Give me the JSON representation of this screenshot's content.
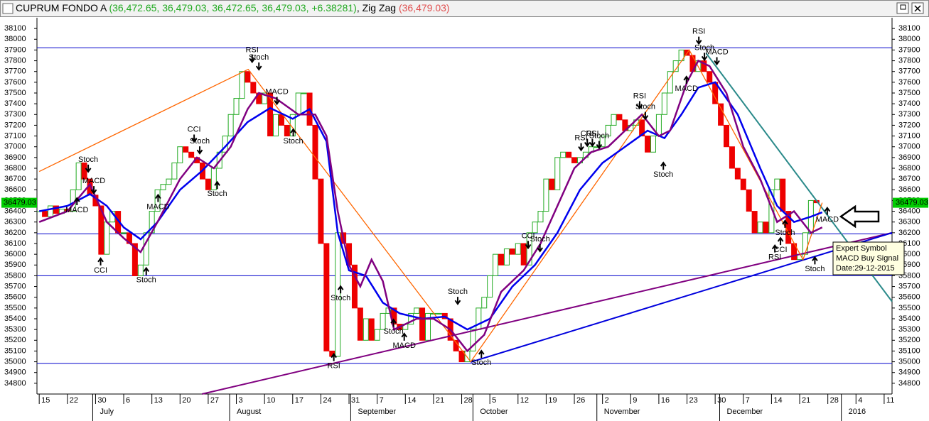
{
  "chart_data": {
    "type": "candlestick",
    "title": "CUPRUM FONDO A",
    "ohlc_text": "(36,472.65, 36,479.03, 36,472.65, 36,479.03, +6.38281)",
    "indicator": ", Zig Zag",
    "indicator_value": "(36,479.03)",
    "up_color": "#22aa22",
    "down_color": "#ee0000",
    "xlim": [
      -0.4,
      151.4
    ],
    "ylim": [
      34700,
      38200
    ],
    "yticks": [
      34800,
      34900,
      35000,
      35100,
      35200,
      35300,
      35400,
      35500,
      35600,
      35700,
      35800,
      35900,
      36000,
      36100,
      36200,
      36300,
      36400,
      36500,
      36600,
      36700,
      36800,
      36900,
      37000,
      37100,
      37200,
      37300,
      37400,
      37500,
      37600,
      37700,
      37800,
      37900,
      38000,
      38100
    ],
    "xticks": [
      {
        "value": 0,
        "label": "15"
      },
      {
        "value": 5,
        "label": "22"
      },
      {
        "value": 10,
        "label": "30"
      },
      {
        "value": 15,
        "label": "6"
      },
      {
        "value": 20,
        "label": "13"
      },
      {
        "value": 25,
        "label": "20"
      },
      {
        "value": 30,
        "label": "27"
      },
      {
        "value": 35,
        "label": "3"
      },
      {
        "value": 40,
        "label": "10"
      },
      {
        "value": 45,
        "label": "17"
      },
      {
        "value": 50,
        "label": "24"
      },
      {
        "value": 55,
        "label": "31"
      },
      {
        "value": 60,
        "label": "7"
      },
      {
        "value": 65,
        "label": "14"
      },
      {
        "value": 70,
        "label": "21"
      },
      {
        "value": 75,
        "label": "28"
      },
      {
        "value": 80,
        "label": "5"
      },
      {
        "value": 85,
        "label": "12"
      },
      {
        "value": 90,
        "label": "19"
      },
      {
        "value": 95,
        "label": "26"
      },
      {
        "value": 100,
        "label": "2"
      },
      {
        "value": 105,
        "label": "9"
      },
      {
        "value": 110,
        "label": "16"
      },
      {
        "value": 115,
        "label": "23"
      },
      {
        "value": 120,
        "label": "30"
      },
      {
        "value": 125,
        "label": "7"
      },
      {
        "value": 130,
        "label": "14"
      },
      {
        "value": 135,
        "label": "21"
      },
      {
        "value": 140,
        "label": "28"
      },
      {
        "value": 145,
        "label": "4"
      },
      {
        "value": 150,
        "label": "11"
      }
    ],
    "months": [
      {
        "value": 9.5,
        "label": "July"
      },
      {
        "value": 33.8,
        "label": "August"
      },
      {
        "value": 55.3,
        "label": "September"
      },
      {
        "value": 77,
        "label": "October"
      },
      {
        "value": 99,
        "label": "November"
      },
      {
        "value": 120.8,
        "label": "December"
      },
      {
        "value": 142.4,
        "label": "2016"
      }
    ],
    "values": [
      36400,
      36350,
      36450,
      36380,
      36420,
      36400,
      36600,
      36850,
      36700,
      36550,
      36450,
      36000,
      36300,
      36400,
      36200,
      36200,
      36100,
      35800,
      35900,
      36200,
      36400,
      36600,
      36650,
      36700,
      36850,
      37000,
      36950,
      36900,
      36850,
      36700,
      36600,
      36800,
      36950,
      37100,
      37300,
      37450,
      37700,
      37600,
      37500,
      37400,
      37500,
      37100,
      37300,
      37200,
      37100,
      37300,
      37500,
      37500,
      37200,
      36700,
      36100,
      35100,
      35050,
      36200,
      36100,
      35900,
      35500,
      35200,
      35400,
      35200,
      35300,
      35450,
      35500,
      35350,
      35300,
      35350,
      35450,
      35500,
      35200,
      35450,
      35450,
      35450,
      35400,
      35200,
      35100,
      35000,
      35100,
      35300,
      35500,
      35600,
      35800,
      36000,
      35900,
      36050,
      36000,
      36100,
      35900,
      36200,
      36300,
      36400,
      36700,
      36600,
      36900,
      36950,
      36900,
      36850,
      36900,
      36950,
      37000,
      37000,
      37100,
      37200,
      37300,
      37250,
      37150,
      37200,
      37250,
      37100,
      36950,
      37100,
      37300,
      37500,
      37700,
      37800,
      37900,
      37850,
      37700,
      37800,
      37700,
      37600,
      37400,
      37200,
      37000,
      36800,
      36700,
      36600,
      36400,
      36200,
      36300,
      36200,
      36600,
      36700,
      36400,
      36100,
      35950,
      36000,
      36200,
      36500,
      36479.03
    ],
    "hlines": {
      "color": "#0000cc",
      "values": [
        37920,
        36190,
        35800,
        34985
      ]
    },
    "moving_averages": [
      {
        "color": "#0000ee",
        "x": [
          0,
          5,
          9,
          12,
          15,
          18,
          21,
          25,
          29,
          33,
          37,
          41,
          45,
          48,
          51,
          53,
          55,
          58,
          61,
          64,
          68,
          72,
          76,
          80,
          84,
          88,
          92,
          96,
          100,
          104,
          108,
          111,
          114,
          117,
          120,
          124,
          128,
          131,
          134,
          137,
          139
        ],
        "values": [
          36400,
          36450,
          36560,
          36450,
          36250,
          36140,
          36300,
          36600,
          36780,
          37000,
          37230,
          37360,
          37260,
          37350,
          37050,
          36200,
          35850,
          35800,
          35550,
          35450,
          35400,
          35420,
          35300,
          35400,
          35700,
          35900,
          36200,
          36600,
          36850,
          37000,
          37150,
          37080,
          37300,
          37550,
          37600,
          37300,
          36800,
          36450,
          36300,
          36350,
          36390
        ]
      },
      {
        "color": "#800080",
        "x": [
          0,
          5,
          9,
          12,
          15,
          18,
          21,
          25,
          28,
          31,
          34,
          37,
          39,
          42,
          46,
          49,
          51,
          53,
          55,
          57,
          59,
          61,
          63,
          67,
          70,
          73,
          76,
          79,
          82,
          86,
          89,
          92,
          95,
          98,
          101,
          104,
          107,
          110,
          112,
          115,
          117,
          119,
          122,
          125,
          128,
          131,
          134,
          137,
          139
        ],
        "values": [
          36300,
          36400,
          36650,
          36300,
          36150,
          36020,
          36300,
          36700,
          36900,
          36800,
          37000,
          37350,
          37500,
          37450,
          37300,
          37300,
          37100,
          36400,
          35900,
          35700,
          35950,
          35750,
          35300,
          35400,
          35400,
          35300,
          35100,
          35250,
          35650,
          35850,
          36100,
          36450,
          36800,
          36950,
          37000,
          37150,
          37300,
          37100,
          37150,
          37600,
          37800,
          37750,
          37500,
          37000,
          36700,
          36300,
          36400,
          36200,
          36250
        ]
      }
    ],
    "zigzag": {
      "color": "#ff6600",
      "x": [
        0,
        37.1,
        76.6,
        115.4,
        135.6,
        139
      ],
      "values": [
        36770,
        37720,
        35000,
        37900,
        35950,
        36479.03
      ]
    },
    "trend_lines": [
      {
        "color": "#800080",
        "x": [
          28.9,
          151.4
        ],
        "values": [
          34700,
          36200
        ]
      },
      {
        "color": "#0000dd",
        "x": [
          76.6,
          151.4
        ],
        "values": [
          34997,
          36200
        ]
      },
      {
        "color": "#2a8a8a",
        "x": [
          118.4,
          151.4
        ],
        "values": [
          37870,
          35560
        ]
      }
    ],
    "signals": [
      {
        "label": "Stoch",
        "x": 8.7,
        "value": 36880,
        "dir": "down"
      },
      {
        "label": "MACD",
        "x": 9.7,
        "value": 36680,
        "dir": "down"
      },
      {
        "label": "MACD",
        "x": 6.7,
        "value": 36410,
        "dir": "up"
      },
      {
        "label": "CCI",
        "x": 10.9,
        "value": 35850,
        "dir": "up"
      },
      {
        "label": "Stoch",
        "x": 19.0,
        "value": 35760,
        "dir": "up"
      },
      {
        "label": "MACD",
        "x": 21.1,
        "value": 36440,
        "dir": "up"
      },
      {
        "label": "CCI",
        "x": 27.5,
        "value": 37160,
        "dir": "down"
      },
      {
        "label": "Stoch",
        "x": 28.5,
        "value": 37050,
        "dir": "down"
      },
      {
        "label": "Stoch",
        "x": 31.6,
        "value": 36560,
        "dir": "up"
      },
      {
        "label": "RSI",
        "x": 37.8,
        "value": 37900,
        "dir": "down"
      },
      {
        "label": "Stoch",
        "x": 39.0,
        "value": 37830,
        "dir": "down"
      },
      {
        "label": "MACD",
        "x": 42.2,
        "value": 37510,
        "dir": "down"
      },
      {
        "label": "Stoch",
        "x": 45.1,
        "value": 37050,
        "dir": "up"
      },
      {
        "label": "Stoch",
        "x": 53.5,
        "value": 35590,
        "dir": "up"
      },
      {
        "label": "RSI",
        "x": 52.3,
        "value": 34960,
        "dir": "up"
      },
      {
        "label": "Stoch",
        "x": 62.9,
        "value": 35280,
        "dir": "up"
      },
      {
        "label": "MACD",
        "x": 64.8,
        "value": 35150,
        "dir": "up"
      },
      {
        "label": "Stoch",
        "x": 74.3,
        "value": 35650,
        "dir": "down"
      },
      {
        "label": "Stoch",
        "x": 78.5,
        "value": 34990,
        "dir": "up"
      },
      {
        "label": "CCI",
        "x": 86.8,
        "value": 36170,
        "dir": "down"
      },
      {
        "label": "Stoch",
        "x": 88.9,
        "value": 36140,
        "dir": "down"
      },
      {
        "label": "RSI",
        "x": 96.2,
        "value": 37080,
        "dir": "down"
      },
      {
        "label": "CCI",
        "x": 97.3,
        "value": 37120,
        "dir": "down"
      },
      {
        "label": "RSI",
        "x": 98.2,
        "value": 37120,
        "dir": "down"
      },
      {
        "label": "Stoch",
        "x": 99.4,
        "value": 37100,
        "dir": "down"
      },
      {
        "label": "RSI",
        "x": 106.6,
        "value": 37470,
        "dir": "down"
      },
      {
        "label": "Stoch",
        "x": 107.6,
        "value": 37370,
        "dir": "down"
      },
      {
        "label": "Stoch",
        "x": 110.8,
        "value": 36740,
        "dir": "up"
      },
      {
        "label": "MACD",
        "x": 114.9,
        "value": 37540,
        "dir": "up"
      },
      {
        "label": "RSI",
        "x": 117.1,
        "value": 38070,
        "dir": "down"
      },
      {
        "label": "Stoch",
        "x": 118.1,
        "value": 37920,
        "dir": "down"
      },
      {
        "label": "MACD",
        "x": 120.3,
        "value": 37880,
        "dir": "down"
      },
      {
        "label": "Stoch",
        "x": 132.4,
        "value": 36200,
        "dir": "up"
      },
      {
        "label": "CCI",
        "x": 131.6,
        "value": 36040,
        "dir": "up"
      },
      {
        "label": "RSI",
        "x": 130.6,
        "value": 35970,
        "dir": "up"
      },
      {
        "label": "MACD",
        "x": 139.9,
        "value": 36320,
        "dir": "up"
      },
      {
        "label": "Stoch",
        "x": 137.7,
        "value": 35860,
        "dir": "up"
      }
    ],
    "last_price": {
      "value": 36479.03,
      "label": "36479.03"
    },
    "tooltip": [
      "Expert Symbol",
      "MACD Buy Signal",
      "Date:29-12-2015"
    ]
  }
}
